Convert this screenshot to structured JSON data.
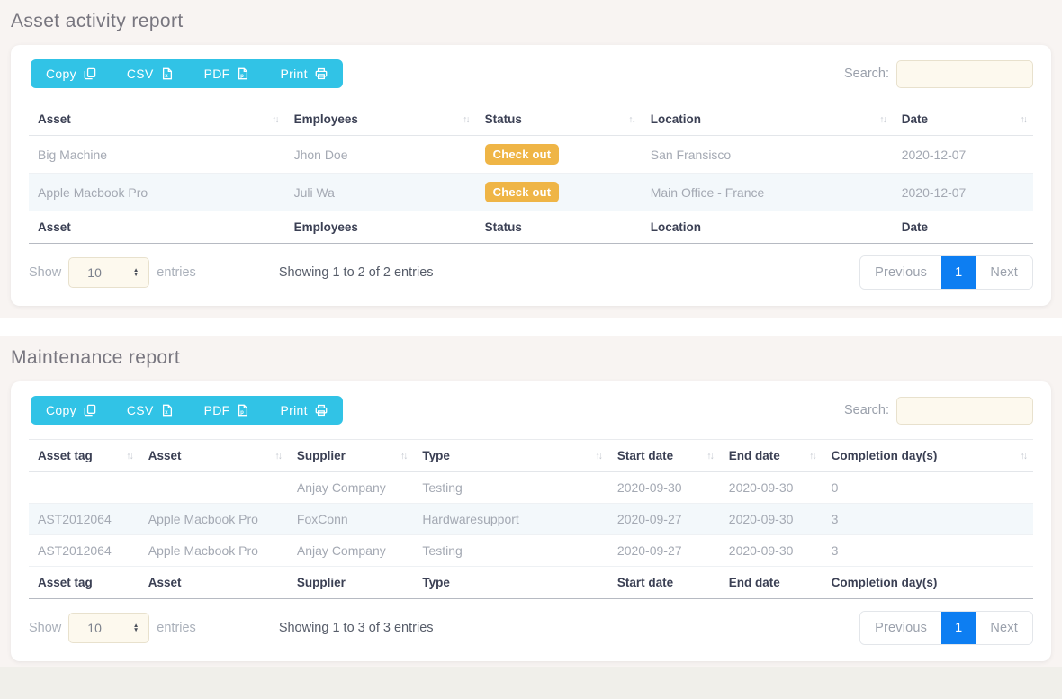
{
  "colors": {
    "accent_cyan": "#31c3e6",
    "badge_orange": "#efb546",
    "active_page_blue": "#0d7ef2",
    "row_stripe_blue": "#f3f8fb",
    "input_cream": "#fdf9ee",
    "section_background": "#f8f4f2",
    "footer_strip": "#f0efea"
  },
  "icons": {
    "sort": "↑↓",
    "select_up": "▲",
    "select_down": "▼"
  },
  "toolbar": {
    "export_buttons": [
      {
        "name": "copy",
        "label": "Copy"
      },
      {
        "name": "csv",
        "label": "CSV"
      },
      {
        "name": "pdf",
        "label": "PDF"
      },
      {
        "name": "print",
        "label": "Print"
      }
    ],
    "search_label": "Search:",
    "search_value": ""
  },
  "length_control": {
    "show_label": "Show",
    "selected": "10",
    "entries_label": "entries"
  },
  "pagination": {
    "previous": "Previous",
    "current_page": "1",
    "next": "Next"
  },
  "sections": [
    {
      "title": "Asset activity report",
      "table": {
        "columns": [
          "Asset",
          "Employees",
          "Status",
          "Location",
          "Date"
        ],
        "rows": [
          [
            "Big Machine",
            "Jhon Doe",
            {
              "badge": "Check out"
            },
            "San Fransisco",
            "2020-12-07"
          ],
          [
            "Apple Macbook Pro",
            "Juli Wa",
            {
              "badge": "Check out"
            },
            "Main Office - France",
            "2020-12-07"
          ]
        ]
      },
      "info": "Showing 1 to 2 of 2 entries"
    },
    {
      "title": "Maintenance report",
      "table": {
        "columns": [
          "Asset tag",
          "Asset",
          "Supplier",
          "Type",
          "Start date",
          "End date",
          "Completion day(s)"
        ],
        "rows": [
          [
            "",
            "",
            "Anjay Company",
            "Testing",
            "2020-09-30",
            "2020-09-30",
            "0"
          ],
          [
            "AST2012064",
            "Apple Macbook Pro",
            "FoxConn",
            "Hardwaresupport",
            "2020-09-27",
            "2020-09-30",
            "3"
          ],
          [
            "AST2012064",
            "Apple Macbook Pro",
            "Anjay Company",
            "Testing",
            "2020-09-27",
            "2020-09-30",
            "3"
          ]
        ]
      },
      "info": "Showing 1 to 3 of 3 entries"
    }
  ]
}
